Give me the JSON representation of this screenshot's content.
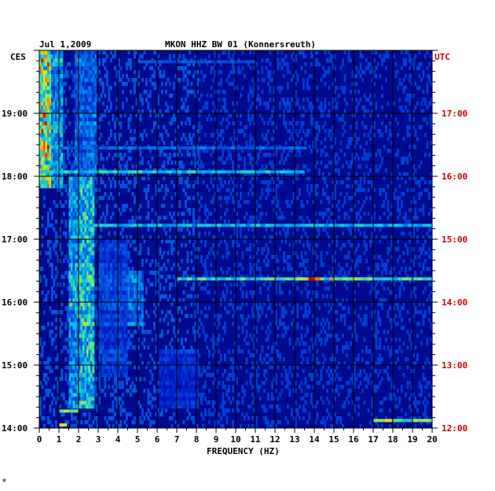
{
  "header": {
    "date": "Jul 1,2009",
    "station": "MKON HHZ BW 01 (Konnersreuth)",
    "left_zone": "CES",
    "right_zone": "UTC"
  },
  "footer_mark": "*",
  "colors": {
    "background": "#000a8c",
    "grid": "#000000",
    "left_labels": "#000000",
    "right_labels": "#cc0000"
  },
  "chart_data": {
    "type": "heatmap",
    "title": "MKON HHZ BW 01 (Konnersreuth)",
    "xlabel": "FREQUENCY (HZ)",
    "ylabel": "",
    "xlim": [
      0,
      20
    ],
    "x_ticks": [
      "0",
      "1",
      "2",
      "3",
      "4",
      "5",
      "6",
      "7",
      "8",
      "9",
      "10",
      "11",
      "12",
      "13",
      "14",
      "15",
      "16",
      "17",
      "18",
      "19",
      "20"
    ],
    "ylim_local_hours": [
      14.0,
      20.0
    ],
    "left_ticks": [
      {
        "hour": 19,
        "label": "19:00"
      },
      {
        "hour": 18,
        "label": "18:00"
      },
      {
        "hour": 17,
        "label": "17:00"
      },
      {
        "hour": 16,
        "label": "16:00"
      },
      {
        "hour": 15,
        "label": "15:00"
      },
      {
        "hour": 14,
        "label": "14:00"
      }
    ],
    "right_ticks": [
      {
        "hour": 19,
        "label": "17:00"
      },
      {
        "hour": 18,
        "label": "16:00"
      },
      {
        "hour": 17,
        "label": "15:00"
      },
      {
        "hour": 16,
        "label": "14:00"
      },
      {
        "hour": 15,
        "label": "13:00"
      },
      {
        "hour": 14,
        "label": "12:00"
      }
    ],
    "energy_bands": [
      {
        "f0": 0.0,
        "f1": 0.6,
        "t0": 17.8,
        "t1": 20.0,
        "level": 0.75
      },
      {
        "f0": 0.6,
        "f1": 1.2,
        "t0": 17.8,
        "t1": 20.0,
        "level": 0.45
      },
      {
        "f0": 1.5,
        "f1": 2.0,
        "t0": 14.3,
        "t1": 18.0,
        "level": 0.45
      },
      {
        "f0": 2.0,
        "f1": 2.8,
        "t0": 14.3,
        "t1": 18.0,
        "level": 0.55
      },
      {
        "f0": 1.8,
        "f1": 2.9,
        "t0": 18.0,
        "t1": 20.0,
        "level": 0.35
      },
      {
        "f0": 4.5,
        "f1": 5.2,
        "t0": 15.6,
        "t1": 16.5,
        "level": 0.35
      },
      {
        "f0": 3.0,
        "f1": 4.5,
        "t0": 14.8,
        "t1": 17.0,
        "level": 0.25
      },
      {
        "f0": 6.0,
        "f1": 8.0,
        "t0": 14.3,
        "t1": 15.2,
        "level": 0.2
      }
    ],
    "events": [
      {
        "t": 18.07,
        "f0": 0.0,
        "f1": 13.5,
        "level": 0.6
      },
      {
        "t": 17.22,
        "f0": 2.0,
        "f1": 20.0,
        "level": 0.55
      },
      {
        "t": 16.37,
        "f0": 7.0,
        "f1": 20.0,
        "level": 0.65
      },
      {
        "t": 16.37,
        "f0": 13.2,
        "f1": 14.3,
        "level": 0.95
      },
      {
        "t": 16.37,
        "f0": 14.8,
        "f1": 15.0,
        "level": 1.0
      },
      {
        "t": 16.37,
        "f0": 15.2,
        "f1": 17.0,
        "level": 0.8
      },
      {
        "t": 14.12,
        "f0": 17.0,
        "f1": 20.0,
        "level": 0.7
      },
      {
        "t": 14.12,
        "f0": 17.6,
        "f1": 17.9,
        "level": 1.0
      },
      {
        "t": 14.05,
        "f0": 1.0,
        "f1": 1.4,
        "level": 0.9
      },
      {
        "t": 14.27,
        "f0": 1.0,
        "f1": 2.0,
        "level": 0.7
      },
      {
        "t": 19.82,
        "f0": 5.0,
        "f1": 11.0,
        "level": 0.35
      },
      {
        "t": 18.45,
        "f0": 1.0,
        "f1": 13.6,
        "level": 0.4
      }
    ]
  }
}
